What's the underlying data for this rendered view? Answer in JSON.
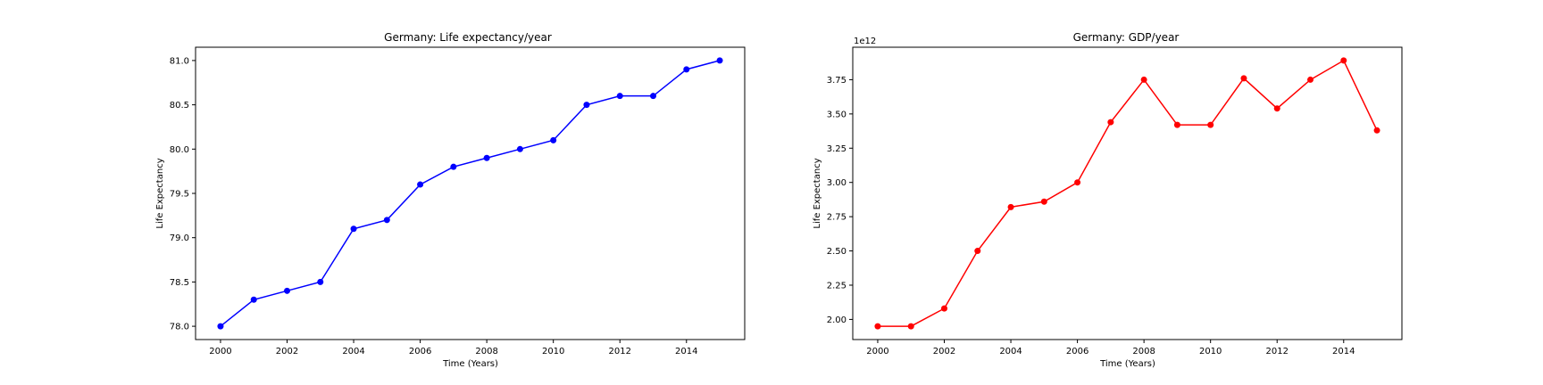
{
  "chart_data": [
    {
      "type": "line",
      "title": "Germany: Life expectancy/year",
      "xlabel": "Time (Years)",
      "ylabel": "Life Expectancy",
      "x": [
        2000,
        2001,
        2002,
        2003,
        2004,
        2005,
        2006,
        2007,
        2008,
        2009,
        2010,
        2011,
        2012,
        2013,
        2014,
        2015
      ],
      "series": [
        {
          "values": [
            78.0,
            78.3,
            78.4,
            78.5,
            79.1,
            79.2,
            79.6,
            79.8,
            79.9,
            80.0,
            80.1,
            80.5,
            80.6,
            80.6,
            80.9,
            81.0
          ]
        }
      ],
      "xticks": [
        2000,
        2002,
        2004,
        2006,
        2008,
        2010,
        2012,
        2014
      ],
      "xtick_labels": [
        "2000",
        "2002",
        "2004",
        "2006",
        "2008",
        "2010",
        "2012",
        "2014"
      ],
      "yticks": [
        78.0,
        78.5,
        79.0,
        79.5,
        80.0,
        80.5,
        81.0
      ],
      "ytick_labels": [
        "78.0",
        "78.5",
        "79.0",
        "79.5",
        "80.0",
        "80.5",
        "81.0"
      ],
      "xlim": [
        1999.25,
        2015.75
      ],
      "ylim": [
        77.85,
        81.15
      ],
      "offset_label": "",
      "marker": "circle",
      "color": "#0000ff",
      "grid": false
    },
    {
      "type": "line",
      "title": "Germany: GDP/year",
      "xlabel": "Time (Years)",
      "ylabel": "Life Expectancy",
      "x": [
        2000,
        2001,
        2002,
        2003,
        2004,
        2005,
        2006,
        2007,
        2008,
        2009,
        2010,
        2011,
        2012,
        2013,
        2014,
        2015
      ],
      "series": [
        {
          "values": [
            1950000000000.0,
            1950000000000.0,
            2080000000000.0,
            2500000000000.0,
            2820000000000.0,
            2860000000000.0,
            3000000000000.0,
            3440000000000.0,
            3750000000000.0,
            3420000000000.0,
            3420000000000.0,
            3760000000000.0,
            3540000000000.0,
            3750000000000.0,
            3890000000000.0,
            3380000000000.0
          ]
        }
      ],
      "xticks": [
        2000,
        2002,
        2004,
        2006,
        2008,
        2010,
        2012,
        2014
      ],
      "xtick_labels": [
        "2000",
        "2002",
        "2004",
        "2006",
        "2008",
        "2010",
        "2012",
        "2014"
      ],
      "yticks": [
        2000000000000.0,
        2250000000000.0,
        2500000000000.0,
        2750000000000.0,
        3000000000000.0,
        3250000000000.0,
        3500000000000.0,
        3750000000000.0
      ],
      "ytick_labels": [
        "2.00",
        "2.25",
        "2.50",
        "2.75",
        "3.00",
        "3.25",
        "3.50",
        "3.75"
      ],
      "xlim": [
        1999.25,
        2015.75
      ],
      "ylim": [
        1853000000000.0,
        3987000000000.0
      ],
      "offset_label": "1e12",
      "marker": "circle",
      "color": "#ff0000",
      "grid": false
    }
  ]
}
